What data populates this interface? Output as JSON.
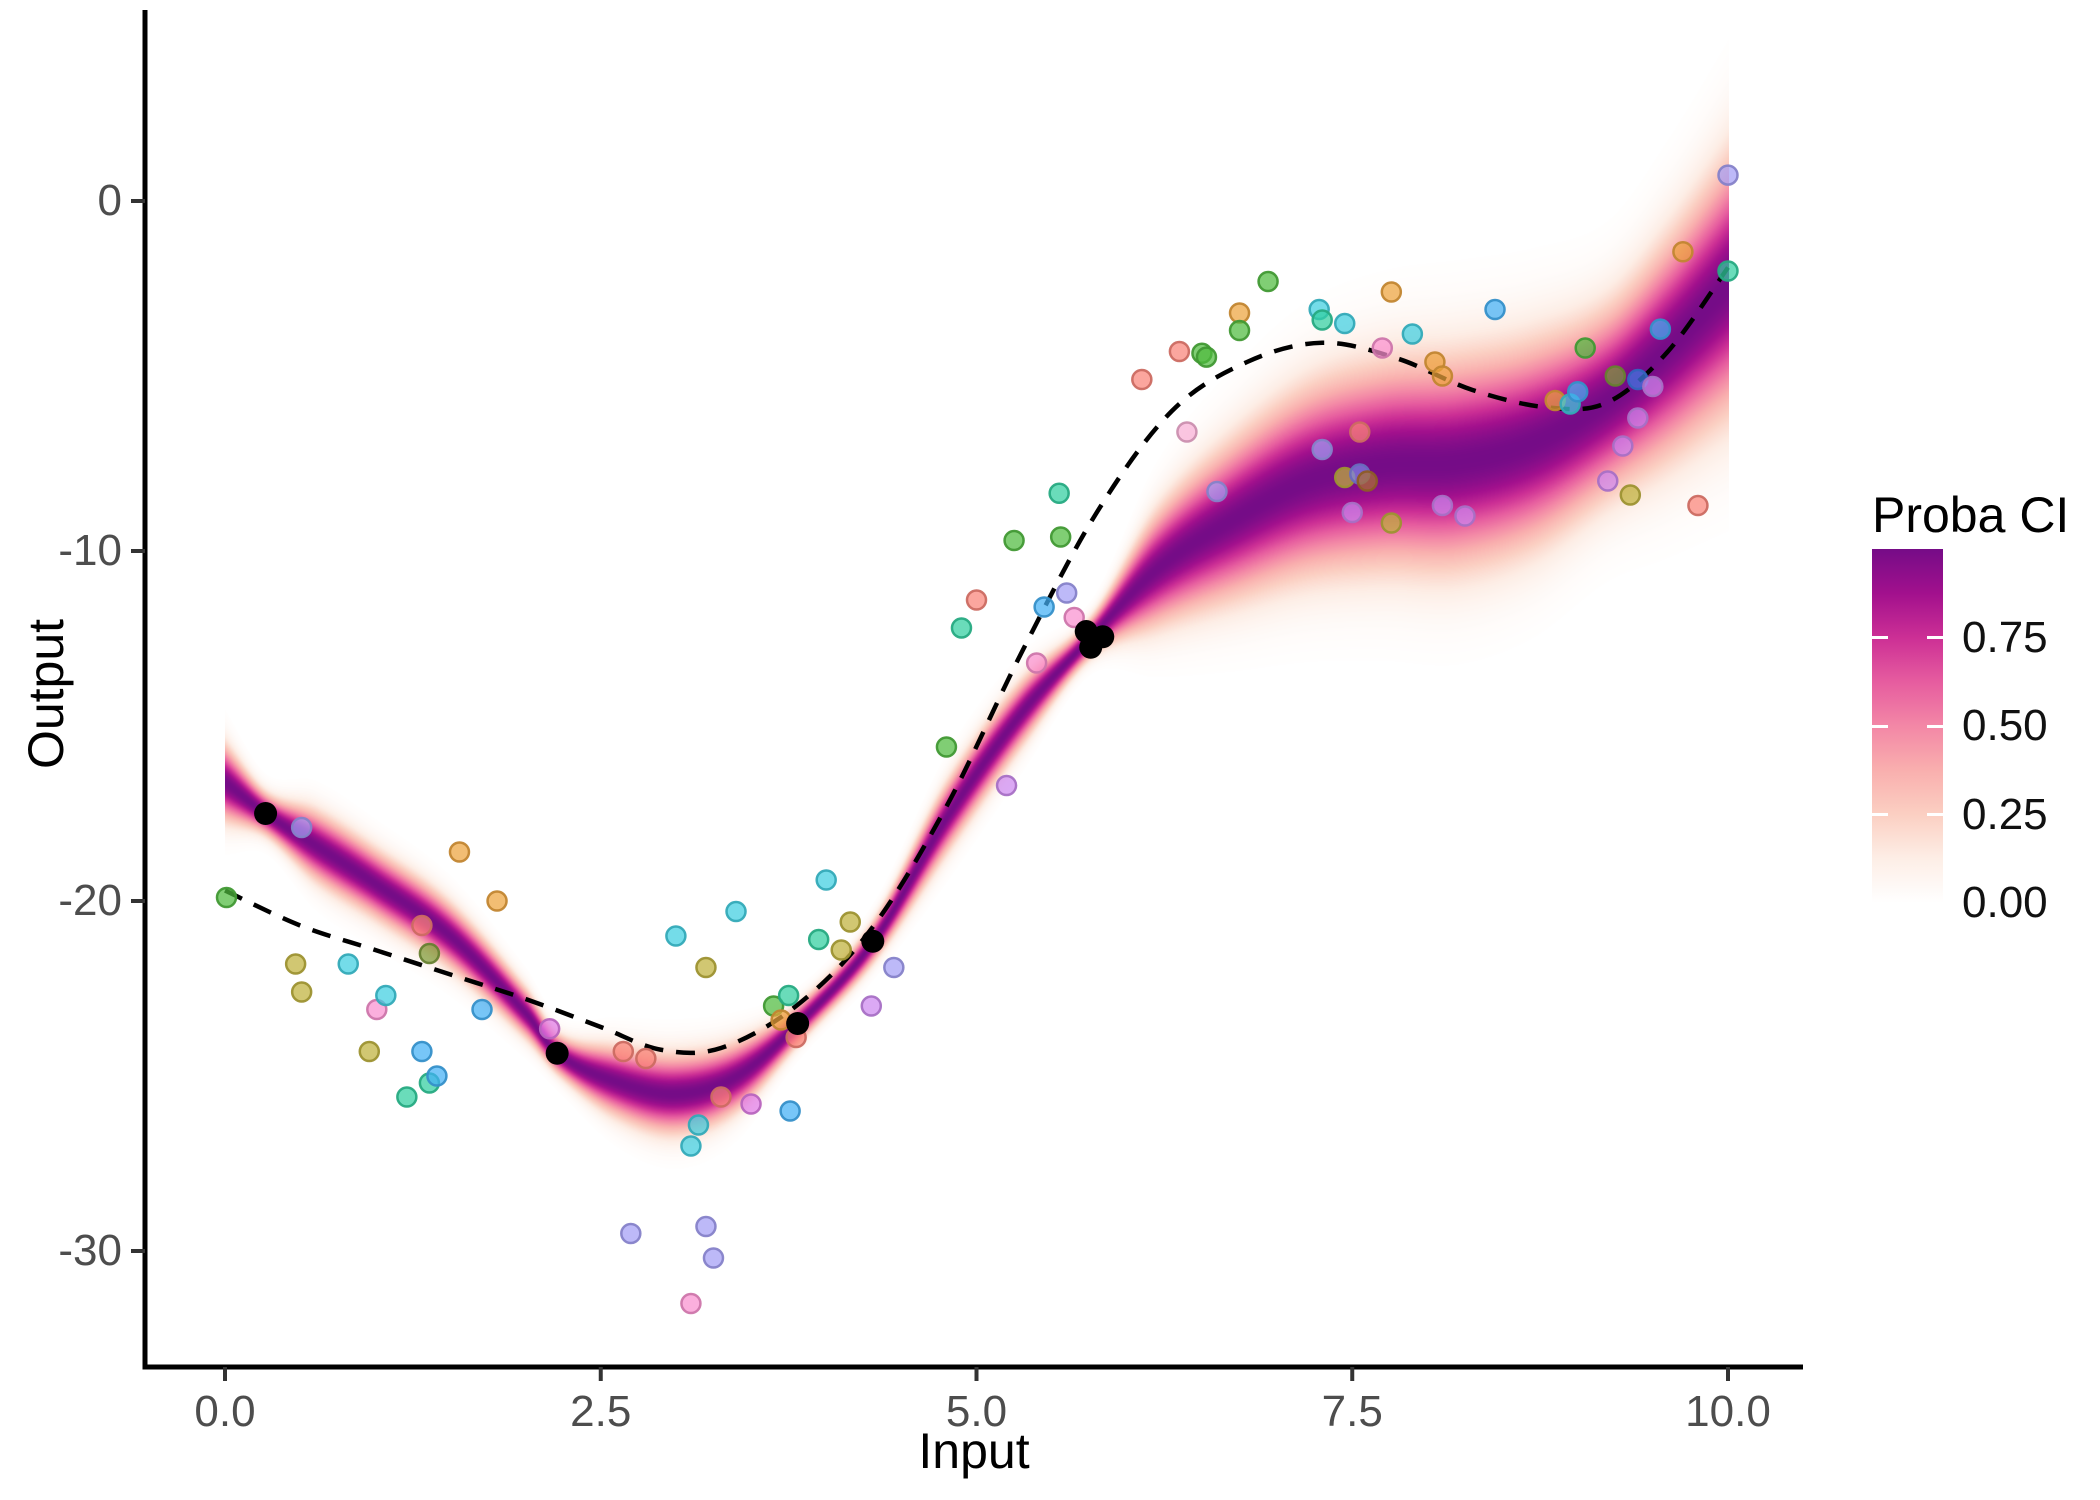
{
  "figure_title": "",
  "styles": {
    "background": "#ffffff",
    "axis_line_color": "#000000",
    "axis_tick_color": "#333333",
    "tick_label_color": "#4d4d4d",
    "dashed_line_color": "#000000",
    "dash_pattern": "19 13",
    "point_radius": 9.5,
    "point_opacity": 0.72,
    "black_point_radius": 11.5,
    "black_point_color": "#000000"
  },
  "legend": {
    "title": "Proba CI",
    "range": [
      0,
      1
    ],
    "ticks": [
      {
        "label": "0.75",
        "value": 0.75
      },
      {
        "label": "0.50",
        "value": 0.5
      },
      {
        "label": "0.25",
        "value": 0.25
      },
      {
        "label": "0.00",
        "value": 0.0
      }
    ]
  },
  "chart_data": {
    "type": "scatter",
    "title": "",
    "xlabel": "Input",
    "ylabel": "Output",
    "xlim": [
      -0.53,
      10.5
    ],
    "ylim": [
      -33.3,
      5.4
    ],
    "grid": "off",
    "legend_position": "right",
    "x_ticks": [
      {
        "label": "0.0",
        "value": 0.0
      },
      {
        "label": "2.5",
        "value": 2.5
      },
      {
        "label": "5.0",
        "value": 5.0
      },
      {
        "label": "7.5",
        "value": 7.5
      },
      {
        "label": "10.0",
        "value": 10.0
      }
    ],
    "y_ticks": [
      {
        "label": "0",
        "value": 0
      },
      {
        "label": "-10",
        "value": -10
      },
      {
        "label": "-20",
        "value": -20
      },
      {
        "label": "-30",
        "value": -30
      }
    ],
    "colormap": [
      {
        "at": 0.0,
        "color": "#ffffff"
      },
      {
        "at": 0.125,
        "color": "#fdeee6"
      },
      {
        "at": 0.25,
        "color": "#fbcfc2"
      },
      {
        "at": 0.375,
        "color": "#f9afae"
      },
      {
        "at": 0.5,
        "color": "#f387a6"
      },
      {
        "at": 0.625,
        "color": "#e65c9f"
      },
      {
        "at": 0.75,
        "color": "#cc2f95"
      },
      {
        "at": 0.875,
        "color": "#a2108d"
      },
      {
        "at": 1.0,
        "color": "#750c87"
      }
    ],
    "density_band": {
      "comment": "posterior probability band, value = Proba CI 0..1",
      "x": [
        0.0,
        0.27,
        0.6,
        1.0,
        1.5,
        2.0,
        2.21,
        2.6,
        3.0,
        3.4,
        3.81,
        4.31,
        4.8,
        5.3,
        5.76,
        6.2,
        6.7,
        7.2,
        7.7,
        8.2,
        8.7,
        9.2,
        9.6,
        10.0
      ],
      "mean": [
        -16.6,
        -17.5,
        -18.4,
        -19.5,
        -21.0,
        -23.2,
        -24.35,
        -25.15,
        -25.5,
        -25.0,
        -23.5,
        -21.15,
        -17.6,
        -14.6,
        -12.45,
        -10.5,
        -9.1,
        -8.0,
        -7.55,
        -7.45,
        -6.9,
        -5.7,
        -4.2,
        -2.4
      ],
      "sigma": [
        0.5,
        0.28,
        0.45,
        0.45,
        0.42,
        0.32,
        0.26,
        0.45,
        0.52,
        0.45,
        0.26,
        0.27,
        0.45,
        0.42,
        0.26,
        0.75,
        1.05,
        1.25,
        1.35,
        1.4,
        1.35,
        1.25,
        1.45,
        1.7
      ]
    },
    "dashed_true_function": {
      "x": [
        0.0,
        0.5,
        1.0,
        1.5,
        2.0,
        2.5,
        2.9,
        3.3,
        3.8,
        4.3,
        4.8,
        5.3,
        5.8,
        6.3,
        6.8,
        7.3,
        7.8,
        8.3,
        8.8,
        9.2,
        9.6,
        10.0
      ],
      "y": [
        -19.7,
        -20.7,
        -21.4,
        -22.1,
        -22.8,
        -23.6,
        -24.25,
        -24.2,
        -23.0,
        -20.8,
        -17.3,
        -12.9,
        -8.9,
        -6.0,
        -4.6,
        -4.05,
        -4.5,
        -5.4,
        -5.9,
        -5.75,
        -4.3,
        -1.9
      ]
    },
    "black_points": [
      {
        "x": 0.27,
        "y": -17.5
      },
      {
        "x": 2.21,
        "y": -24.35
      },
      {
        "x": 3.81,
        "y": -23.5
      },
      {
        "x": 4.31,
        "y": -21.15
      },
      {
        "x": 5.73,
        "y": -12.3
      },
      {
        "x": 5.76,
        "y": -12.75
      },
      {
        "x": 5.84,
        "y": -12.45
      }
    ],
    "points": [
      {
        "x": 0.01,
        "y": -19.9,
        "c": "#4fbb3f"
      },
      {
        "x": 0.51,
        "y": -17.9,
        "c": "#a39ef5"
      },
      {
        "x": 0.47,
        "y": -21.8,
        "c": "#bfb23c"
      },
      {
        "x": 0.51,
        "y": -22.6,
        "c": "#bfb23c"
      },
      {
        "x": 0.82,
        "y": -21.8,
        "c": "#3fcfe0"
      },
      {
        "x": 0.96,
        "y": -24.3,
        "c": "#bfb23c"
      },
      {
        "x": 1.01,
        "y": -23.1,
        "c": "#fa90d0"
      },
      {
        "x": 1.07,
        "y": -22.7,
        "c": "#3fcfe0"
      },
      {
        "x": 1.21,
        "y": -25.6,
        "c": "#30cf9f"
      },
      {
        "x": 1.31,
        "y": -20.7,
        "c": "#f98478"
      },
      {
        "x": 1.31,
        "y": -24.3,
        "c": "#42b0f5"
      },
      {
        "x": 1.36,
        "y": -21.5,
        "c": "#7e9c3a"
      },
      {
        "x": 1.36,
        "y": -25.2,
        "c": "#30cf9f"
      },
      {
        "x": 1.41,
        "y": -25.0,
        "c": "#42b0f5"
      },
      {
        "x": 1.56,
        "y": -18.6,
        "c": "#eda43d"
      },
      {
        "x": 1.71,
        "y": -23.1,
        "c": "#42b0f5"
      },
      {
        "x": 1.81,
        "y": -20.0,
        "c": "#eda43d"
      },
      {
        "x": 2.16,
        "y": -23.65,
        "c": "#e07ae8"
      },
      {
        "x": 2.65,
        "y": -24.3,
        "c": "#f98478"
      },
      {
        "x": 2.8,
        "y": -24.5,
        "c": "#f98478"
      },
      {
        "x": 2.7,
        "y": -29.5,
        "c": "#a39ef5"
      },
      {
        "x": 3.2,
        "y": -29.3,
        "c": "#a39ef5"
      },
      {
        "x": 3.25,
        "y": -30.2,
        "c": "#a39ef5"
      },
      {
        "x": 3.1,
        "y": -31.5,
        "c": "#fa90d0"
      },
      {
        "x": 3.0,
        "y": -21.0,
        "c": "#3fcfe0"
      },
      {
        "x": 3.2,
        "y": -21.9,
        "c": "#bfb23c"
      },
      {
        "x": 3.15,
        "y": -26.4,
        "c": "#3fcfe0"
      },
      {
        "x": 3.1,
        "y": -27.0,
        "c": "#3fcfe0"
      },
      {
        "x": 3.3,
        "y": -25.6,
        "c": "#f98478"
      },
      {
        "x": 3.5,
        "y": -25.8,
        "c": "#e07ae8"
      },
      {
        "x": 3.4,
        "y": -20.3,
        "c": "#3fcfe0"
      },
      {
        "x": 3.65,
        "y": -23.0,
        "c": "#4fbb3f"
      },
      {
        "x": 3.7,
        "y": -23.4,
        "c": "#eda43d"
      },
      {
        "x": 3.75,
        "y": -22.7,
        "c": "#30cf9f"
      },
      {
        "x": 3.8,
        "y": -23.9,
        "c": "#f98478"
      },
      {
        "x": 3.76,
        "y": -26.0,
        "c": "#42b0f5"
      },
      {
        "x": 3.95,
        "y": -21.1,
        "c": "#30cf9f"
      },
      {
        "x": 4.0,
        "y": -19.4,
        "c": "#3fcfe0"
      },
      {
        "x": 4.1,
        "y": -21.4,
        "c": "#bfb23c"
      },
      {
        "x": 4.16,
        "y": -20.6,
        "c": "#bfb23c"
      },
      {
        "x": 4.3,
        "y": -23.0,
        "c": "#cd88f0"
      },
      {
        "x": 4.45,
        "y": -21.9,
        "c": "#a39ef5"
      },
      {
        "x": 4.8,
        "y": -15.6,
        "c": "#4fbb3f"
      },
      {
        "x": 4.9,
        "y": -12.2,
        "c": "#30cf9f"
      },
      {
        "x": 5.0,
        "y": -11.4,
        "c": "#f98478"
      },
      {
        "x": 5.2,
        "y": -16.7,
        "c": "#cd88f0"
      },
      {
        "x": 5.25,
        "y": -9.7,
        "c": "#4fbb3f"
      },
      {
        "x": 5.45,
        "y": -11.6,
        "c": "#42b0f5"
      },
      {
        "x": 5.55,
        "y": -8.35,
        "c": "#30cf9f"
      },
      {
        "x": 5.56,
        "y": -9.6,
        "c": "#4fbb3f"
      },
      {
        "x": 5.6,
        "y": -11.2,
        "c": "#a39ef5"
      },
      {
        "x": 5.65,
        "y": -11.9,
        "c": "#fa90d0"
      },
      {
        "x": 5.4,
        "y": -13.2,
        "c": "#fa90d0"
      },
      {
        "x": 6.1,
        "y": -5.1,
        "c": "#f98478"
      },
      {
        "x": 6.35,
        "y": -4.3,
        "c": "#f98478"
      },
      {
        "x": 6.4,
        "y": -6.6,
        "c": "#f8aed6"
      },
      {
        "x": 6.5,
        "y": -4.35,
        "c": "#4fbb3f"
      },
      {
        "x": 6.53,
        "y": -4.46,
        "c": "#4fbb3f"
      },
      {
        "x": 6.6,
        "y": -8.3,
        "c": "#a39ef5"
      },
      {
        "x": 6.75,
        "y": -3.2,
        "c": "#eda43d"
      },
      {
        "x": 6.75,
        "y": -3.7,
        "c": "#4fbb3f"
      },
      {
        "x": 6.94,
        "y": -2.3,
        "c": "#4fbb3f"
      },
      {
        "x": 7.28,
        "y": -3.1,
        "c": "#3fcfe0"
      },
      {
        "x": 7.3,
        "y": -3.4,
        "c": "#30cf9f"
      },
      {
        "x": 7.45,
        "y": -3.5,
        "c": "#3fcfe0"
      },
      {
        "x": 7.3,
        "y": -7.1,
        "c": "#a39ef5"
      },
      {
        "x": 7.5,
        "y": -8.9,
        "c": "#cd88f0"
      },
      {
        "x": 7.45,
        "y": -7.9,
        "c": "#bfb23c"
      },
      {
        "x": 7.55,
        "y": -7.8,
        "c": "#8084e8"
      },
      {
        "x": 7.6,
        "y": -8.0,
        "c": "#ac7030"
      },
      {
        "x": 7.55,
        "y": -6.6,
        "c": "#f98478"
      },
      {
        "x": 7.7,
        "y": -4.2,
        "c": "#fa90d0"
      },
      {
        "x": 7.76,
        "y": -2.6,
        "c": "#eda43d"
      },
      {
        "x": 7.76,
        "y": -9.2,
        "c": "#bfb23c"
      },
      {
        "x": 7.9,
        "y": -3.8,
        "c": "#3fcfe0"
      },
      {
        "x": 8.05,
        "y": -4.6,
        "c": "#eda43d"
      },
      {
        "x": 8.1,
        "y": -5.0,
        "c": "#eda43d"
      },
      {
        "x": 8.1,
        "y": -8.7,
        "c": "#cd88f0"
      },
      {
        "x": 8.25,
        "y": -9.0,
        "c": "#cd88f0"
      },
      {
        "x": 8.45,
        "y": -3.1,
        "c": "#42b0f5"
      },
      {
        "x": 8.85,
        "y": -5.7,
        "c": "#eda43d"
      },
      {
        "x": 8.95,
        "y": -5.8,
        "c": "#3fcfe0"
      },
      {
        "x": 9.0,
        "y": -5.45,
        "c": "#42b0f5"
      },
      {
        "x": 9.05,
        "y": -4.2,
        "c": "#4fbb3f"
      },
      {
        "x": 9.2,
        "y": -8.0,
        "c": "#cd88f0"
      },
      {
        "x": 9.25,
        "y": -5.0,
        "c": "#7e9c3a"
      },
      {
        "x": 9.3,
        "y": -7.0,
        "c": "#cd88f0"
      },
      {
        "x": 9.35,
        "y": -8.4,
        "c": "#bfb23c"
      },
      {
        "x": 9.4,
        "y": -5.1,
        "c": "#3f7ae8"
      },
      {
        "x": 9.4,
        "y": -6.2,
        "c": "#cd88f0"
      },
      {
        "x": 9.5,
        "y": -5.3,
        "c": "#cd88f0"
      },
      {
        "x": 9.55,
        "y": -3.66,
        "c": "#42b0f5"
      },
      {
        "x": 9.7,
        "y": -1.45,
        "c": "#eda43d"
      },
      {
        "x": 9.8,
        "y": -8.7,
        "c": "#f98478"
      },
      {
        "x": 10.0,
        "y": 0.74,
        "c": "#a39ef5"
      },
      {
        "x": 10.0,
        "y": -2.0,
        "c": "#30cf9f"
      }
    ]
  }
}
